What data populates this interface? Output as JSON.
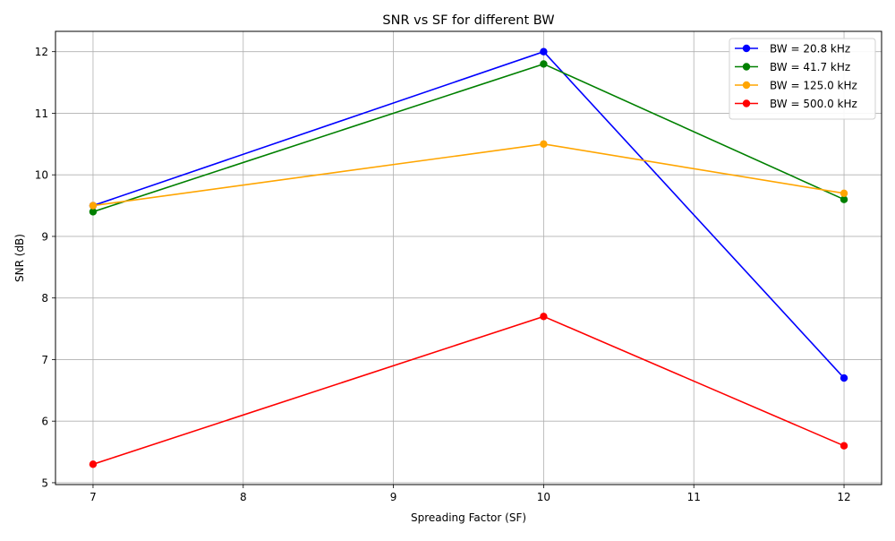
{
  "chart_data": {
    "type": "line",
    "title": "SNR vs SF for different BW",
    "xlabel": "Spreading Factor (SF)",
    "ylabel": "SNR (dB)",
    "x": [
      7,
      10,
      12
    ],
    "xlim": [
      6.75,
      12.25
    ],
    "ylim": [
      4.97,
      12.33
    ],
    "xticks": [
      7,
      8,
      9,
      10,
      11,
      12
    ],
    "yticks": [
      5,
      6,
      7,
      8,
      9,
      10,
      11,
      12
    ],
    "grid": true,
    "legend_position": "top-right",
    "series": [
      {
        "name": "BW = 20.8 kHz",
        "color": "#0000ff",
        "values": [
          9.5,
          12.0,
          6.7
        ]
      },
      {
        "name": "BW = 41.7 kHz",
        "color": "#008000",
        "values": [
          9.4,
          11.8,
          9.6
        ]
      },
      {
        "name": "BW = 125.0 kHz",
        "color": "#ffa500",
        "values": [
          9.5,
          10.5,
          9.7
        ]
      },
      {
        "name": "BW = 500.0 kHz",
        "color": "#ff0000",
        "values": [
          5.3,
          7.7,
          5.6
        ]
      }
    ]
  }
}
